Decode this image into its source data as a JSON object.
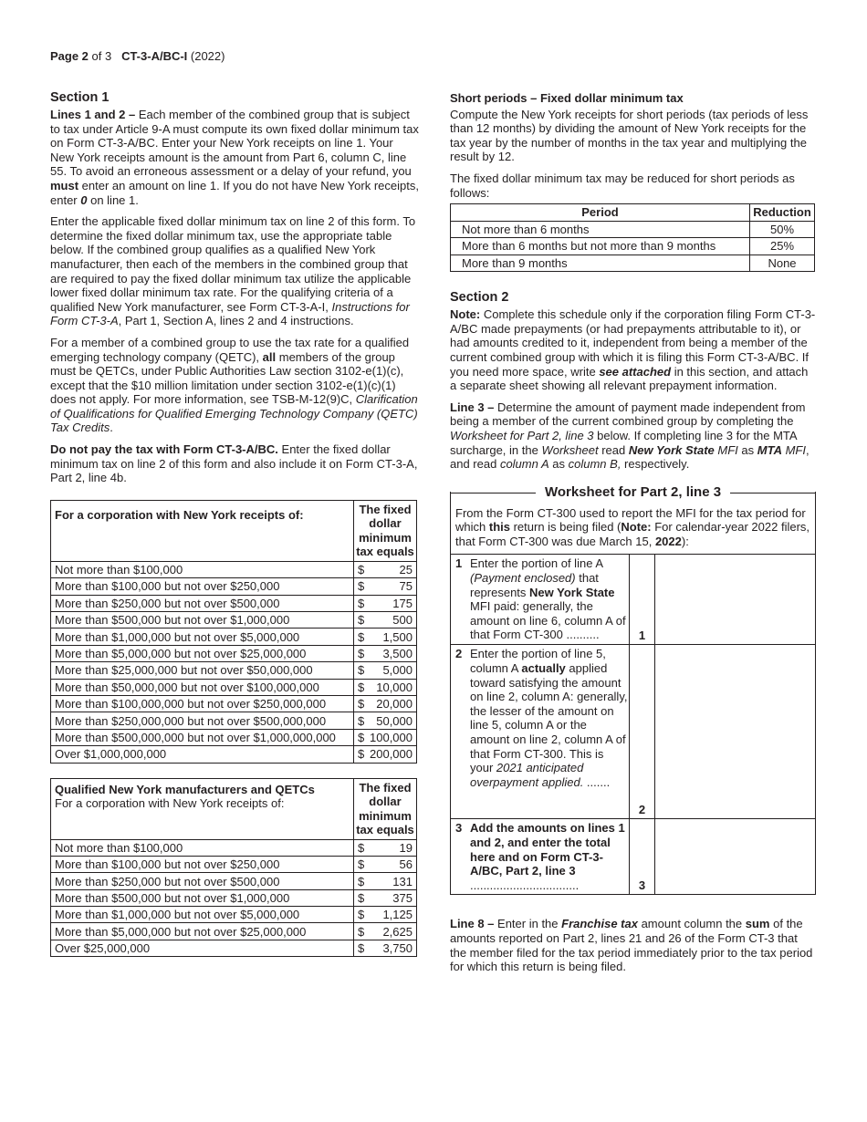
{
  "header": {
    "page": "Page 2",
    "of": " of 3",
    "form": "CT-3-A/BC-I",
    "year": " (2022)"
  },
  "section1": {
    "title": "Section 1",
    "p1": [
      {
        "b": "Lines 1 and 2 –"
      },
      " Each member of the combined group that is subject to tax under Article 9-A must compute its own fixed dollar minimum tax on Form CT-3-A/BC. Enter your New York receipts on line 1. Your New York receipts amount is the amount from Part 6, column C, line 55. To avoid an erroneous assessment or a delay of your refund, you ",
      {
        "b": "must"
      },
      " enter an amount on line 1. If you do not have New York receipts, enter ",
      {
        "bi": "0"
      },
      " on line 1."
    ],
    "p2": [
      "Enter the applicable fixed dollar minimum tax on line 2 of this form. To determine the fixed dollar minimum tax, use the appropriate table below. If the combined group qualifies as a qualified New York manufacturer, then each of the members in the combined group that are required to pay the fixed dollar minimum tax utilize the applicable lower fixed dollar minimum tax rate. For the qualifying criteria of a qualified New York manufacturer, see Form CT-3-A-I, ",
      {
        "i": "Instructions for Form CT-3-A"
      },
      ", Part 1, Section A, lines 2 and 4 instructions."
    ],
    "p3": [
      "For a member of a combined group to use the tax rate for a qualified emerging technology company (QETC), ",
      {
        "b": "all"
      },
      " members of the group must be QETCs, under Public Authorities Law section 3102-e(1)(c), except that the $10 million limitation under section 3102-e(1)(c)(1) does not apply. For more information, see TSB-M-12(9)C, ",
      {
        "i": "Clarification of Qualifications for Qualified Emerging Technology Company (QETC) Tax Credits"
      },
      "."
    ],
    "p4": [
      {
        "b": "Do not pay the tax with Form CT-3-A/BC."
      },
      " Enter the fixed dollar minimum tax on line 2 of this form and also include it on Form CT-3-A, Part 2, line 4b."
    ]
  },
  "table1": {
    "header_label": "For a corporation with New York receipts of:",
    "header_value": "The fixed dollar minimum tax equals",
    "rows": [
      {
        "label": "Not more than $100,000",
        "cur": "$",
        "amount": "25"
      },
      {
        "label": "More than $100,000 but not over $250,000",
        "cur": "$",
        "amount": "75"
      },
      {
        "label": "More than $250,000 but not over $500,000",
        "cur": "$",
        "amount": "175"
      },
      {
        "label": "More than $500,000 but not over $1,000,000",
        "cur": "$",
        "amount": "500"
      },
      {
        "label": "More than $1,000,000 but not over $5,000,000",
        "cur": "$",
        "amount": "1,500"
      },
      {
        "label": "More than $5,000,000 but not over $25,000,000",
        "cur": "$",
        "amount": "3,500"
      },
      {
        "label": "More than $25,000,000 but not over $50,000,000",
        "cur": "$",
        "amount": "5,000"
      },
      {
        "label": "More than $50,000,000 but not over $100,000,000",
        "cur": "$",
        "amount": "10,000"
      },
      {
        "label": "More than $100,000,000 but not over $250,000,000",
        "cur": "$",
        "amount": "20,000"
      },
      {
        "label": "More than $250,000,000 but not over $500,000,000",
        "cur": "$",
        "amount": "50,000"
      },
      {
        "label": "More than $500,000,000 but not over $1,000,000,000",
        "cur": "$",
        "amount": "100,000"
      },
      {
        "label": "Over $1,000,000,000",
        "cur": "$",
        "amount": "200,000"
      }
    ]
  },
  "table2": {
    "header_label": "Qualified New York manufacturers and QETCs",
    "header_sublabel": "For a corporation with New York receipts of:",
    "header_value": "The fixed dollar minimum tax equals",
    "rows": [
      {
        "label": "Not more than $100,000",
        "cur": "$",
        "amount": "19"
      },
      {
        "label": "More than $100,000 but not over $250,000",
        "cur": "$",
        "amount": "56"
      },
      {
        "label": "More than $250,000 but not over $500,000",
        "cur": "$",
        "amount": "131"
      },
      {
        "label": "More than $500,000 but not over $1,000,000",
        "cur": "$",
        "amount": "375"
      },
      {
        "label": "More than $1,000,000 but not over $5,000,000",
        "cur": "$",
        "amount": "1,125"
      },
      {
        "label": "More than $5,000,000 but not over $25,000,000",
        "cur": "$",
        "amount": "2,625"
      },
      {
        "label": "Over $25,000,000",
        "cur": "$",
        "amount": "3,750"
      }
    ]
  },
  "short_periods": {
    "title": "Short periods – Fixed dollar minimum tax",
    "p1": [
      "Compute the New York receipts for short periods (tax periods of less than 12 months) by dividing the amount of New York receipts for the tax year by the number of months in the tax year and multiplying the result by 12."
    ],
    "p2": [
      "The fixed dollar minimum tax may be reduced for short periods as follows:"
    ],
    "col_period": "Period",
    "col_reduction": "Reduction",
    "rows": [
      {
        "period": "Not more than 6 months",
        "reduction": "50%"
      },
      {
        "period": "More than 6 months but not more than 9 months",
        "reduction": "25%"
      },
      {
        "period": "More than 9 months",
        "reduction": "None"
      }
    ]
  },
  "section2": {
    "title": "Section 2",
    "note": [
      {
        "b": "Note:"
      },
      " Complete this schedule only if the corporation filing Form CT-3-A/BC made prepayments (or had prepayments attributable to it), or had amounts credited to it, independent from being a member of the current combined group with which it is filing this Form CT-3-A/BC. If you need more space, write ",
      {
        "bi": "see attached"
      },
      " in this section, and attach a separate sheet showing all relevant prepayment information."
    ],
    "line3": [
      {
        "b": "Line 3 –"
      },
      " Determine the amount of payment made independent from being a member of the current combined group by completing the ",
      {
        "i": "Worksheet for Part 2, line 3"
      },
      " below. If completing line 3 for the MTA surcharge, in the ",
      {
        "i": "Worksheet"
      },
      " read ",
      {
        "bi": "New York State"
      },
      " ",
      {
        "i": "MFI"
      },
      " as ",
      {
        "bi": "MTA"
      },
      " ",
      {
        "i": "MFI"
      },
      ", and read ",
      {
        "i": "column A"
      },
      " as ",
      {
        "i": "column B,"
      },
      " respectively."
    ]
  },
  "worksheet": {
    "title": "Worksheet for Part 2, line 3",
    "intro": [
      "From the Form CT-300 used to report the MFI for the tax period for which ",
      {
        "b": "this"
      },
      " return is being filed (",
      {
        "b": "Note:"
      },
      " For calendar-year 2022 filers, that Form CT-300 was due March 15, ",
      {
        "b": "2022"
      },
      "):"
    ],
    "lines": [
      {
        "num": "1",
        "line": "1",
        "text": [
          "Enter the portion of line A ",
          {
            "i": "(Payment enclosed)"
          },
          " that represents ",
          {
            "b": "New York State"
          },
          " MFI paid: generally, the amount on line 6, column A of that Form CT-300 .........."
        ]
      },
      {
        "num": "2",
        "line": "2",
        "text": [
          "Enter the portion of line 5, column A ",
          {
            "b": "actually"
          },
          " applied toward satisfying the amount on line 2, column A: generally, the lesser of the amount on line 5, column A or the amount on line 2, column A of that Form CT-300. This is your ",
          {
            "i": "2021 anticipated overpayment applied."
          },
          " ......."
        ]
      },
      {
        "num": "3",
        "line": "3",
        "text": [
          {
            "b": "Add the amounts on lines 1 and 2, and enter the total here and on Form CT-3-A/BC, Part 2, line 3"
          },
          " ................................."
        ]
      }
    ]
  },
  "line8": [
    {
      "b": "Line 8 –"
    },
    " Enter in the ",
    {
      "bi": "Franchise tax"
    },
    " amount column the ",
    {
      "b": "sum"
    },
    " of the amounts reported on Part 2, lines 21 and 26 of the Form CT-3 that the member filed for the tax period immediately prior to the tax period for which this return is being filed."
  ]
}
